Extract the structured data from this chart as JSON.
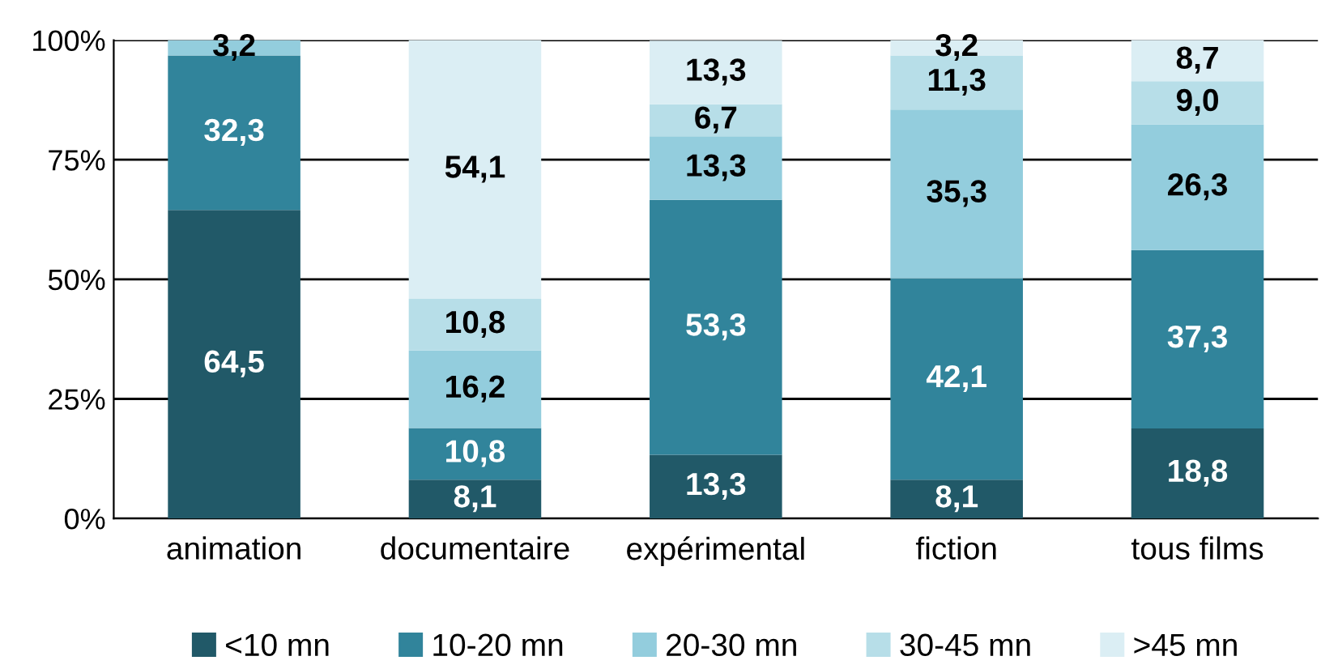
{
  "chart_data": {
    "type": "bar",
    "stacked": true,
    "categories": [
      "animation",
      "documentaire",
      "expérimental",
      "fiction",
      "tous films"
    ],
    "series": [
      {
        "name": "<10 mn",
        "color": "#215968",
        "values": [
          64.5,
          8.1,
          13.3,
          8.1,
          18.8
        ],
        "value_labels": [
          "64,5",
          "8,1",
          "13,3",
          "8,1",
          "18,8"
        ]
      },
      {
        "name": "10-20 mn",
        "color": "#31849b",
        "values": [
          32.3,
          10.8,
          53.3,
          42.1,
          37.3
        ],
        "value_labels": [
          "32,3",
          "10,8",
          "53,3",
          "42,1",
          "37,3"
        ]
      },
      {
        "name": "20-30 mn",
        "color": "#93cddd",
        "values": [
          3.2,
          16.2,
          13.3,
          35.3,
          26.3
        ],
        "value_labels": [
          "3,2",
          "16,2",
          "13,3",
          "35,3",
          "26,3"
        ]
      },
      {
        "name": "30-45 mn",
        "color": "#b7dee8",
        "values": [
          null,
          10.8,
          6.7,
          11.3,
          9.0
        ],
        "value_labels": [
          null,
          "10,8",
          "6,7",
          "11,3",
          "9,0"
        ]
      },
      {
        "name": ">45 mn",
        "color": "#dbeef4",
        "values": [
          null,
          54.1,
          13.3,
          3.2,
          8.7
        ],
        "value_labels": [
          null,
          "54,1",
          "13,3",
          "3,2",
          "8,7"
        ]
      }
    ],
    "ylim": [
      0,
      100
    ],
    "yticks": [
      {
        "value": 0,
        "label": "0%"
      },
      {
        "value": 25,
        "label": "25%"
      },
      {
        "value": 50,
        "label": "50%"
      },
      {
        "value": 75,
        "label": "75%"
      },
      {
        "value": 100,
        "label": "100%"
      }
    ],
    "grid": "y",
    "legend": "bottom"
  }
}
